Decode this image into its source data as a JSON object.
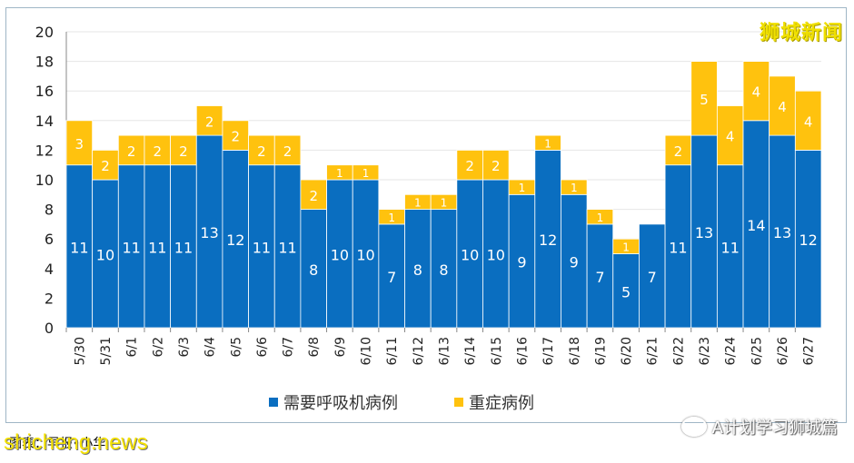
{
  "brand": "狮城新闻",
  "footer": {
    "source": "图表：早报•小华",
    "site": "shicheng.news",
    "wechat": "A计划学习狮城篇"
  },
  "colors": {
    "blue": "#0a6ec0",
    "yellow": "#ffc20e",
    "grid": "#e6e6e6"
  },
  "chart_data": {
    "type": "bar",
    "stacked": true,
    "categories": [
      "5/30",
      "5/31",
      "6/1",
      "6/2",
      "6/3",
      "6/4",
      "6/5",
      "6/6",
      "6/7",
      "6/8",
      "6/9",
      "6/10",
      "6/11",
      "6/12",
      "6/13",
      "6/14",
      "6/15",
      "6/16",
      "6/17",
      "6/18",
      "6/19",
      "6/20",
      "6/21",
      "6/22",
      "6/23",
      "6/24",
      "6/25",
      "6/26",
      "6/27"
    ],
    "series": [
      {
        "name": "需要呼吸机病例",
        "color": "#0a6ec0",
        "values": [
          11,
          10,
          11,
          11,
          11,
          13,
          12,
          11,
          11,
          8,
          10,
          10,
          7,
          8,
          8,
          10,
          10,
          9,
          12,
          9,
          7,
          5,
          7,
          11,
          13,
          11,
          14,
          13,
          12
        ]
      },
      {
        "name": "重症病例",
        "color": "#ffc20e",
        "values": [
          3,
          2,
          2,
          2,
          2,
          2,
          2,
          2,
          2,
          2,
          1,
          1,
          1,
          1,
          1,
          2,
          2,
          1,
          1,
          1,
          1,
          1,
          0,
          2,
          5,
          4,
          4,
          4,
          4
        ]
      }
    ],
    "yticks": [
      0,
      2,
      4,
      6,
      8,
      10,
      12,
      14,
      16,
      18,
      20
    ],
    "ylim": [
      0,
      20
    ]
  }
}
